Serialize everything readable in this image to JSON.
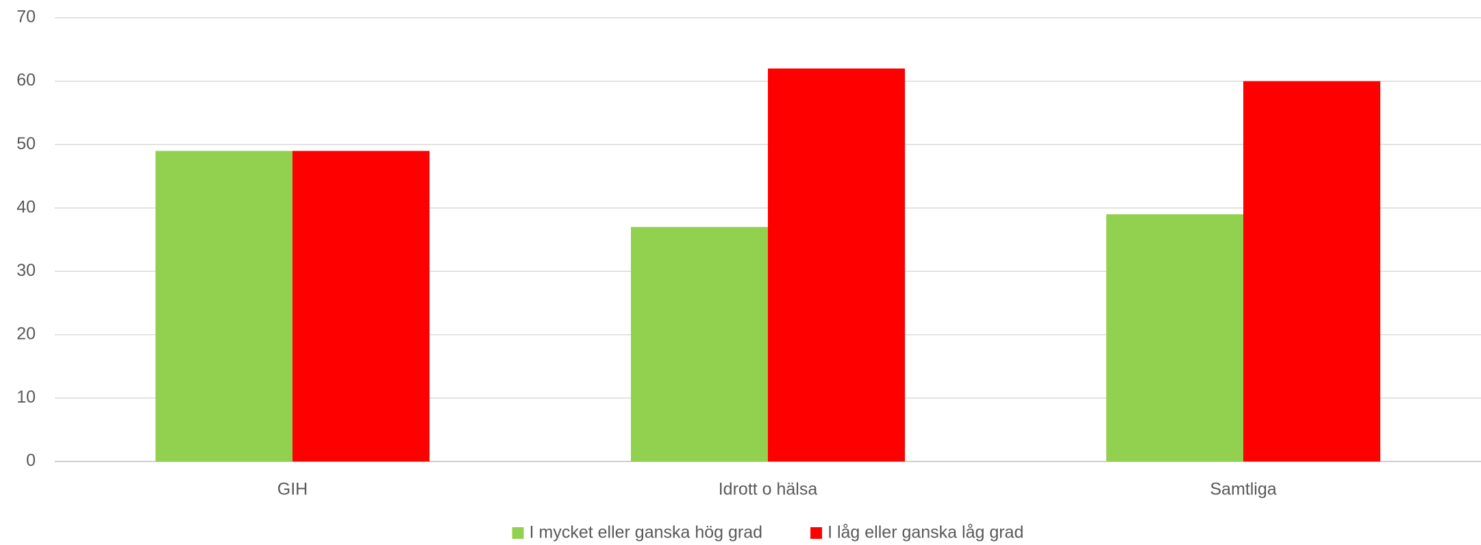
{
  "chart_data": {
    "type": "bar",
    "categories": [
      "GIH",
      "Idrott o hälsa",
      "Samtliga"
    ],
    "series": [
      {
        "name": "I mycket eller ganska hög grad",
        "color": "#92d050",
        "values": [
          49,
          37,
          39
        ]
      },
      {
        "name": "I låg eller ganska låg grad",
        "color": "#ff0000",
        "values": [
          49,
          62,
          60
        ]
      }
    ],
    "ylim": [
      0,
      70
    ],
    "yticks": [
      0,
      10,
      20,
      30,
      40,
      50,
      60,
      70
    ],
    "grid": true,
    "legend": "bottom"
  }
}
